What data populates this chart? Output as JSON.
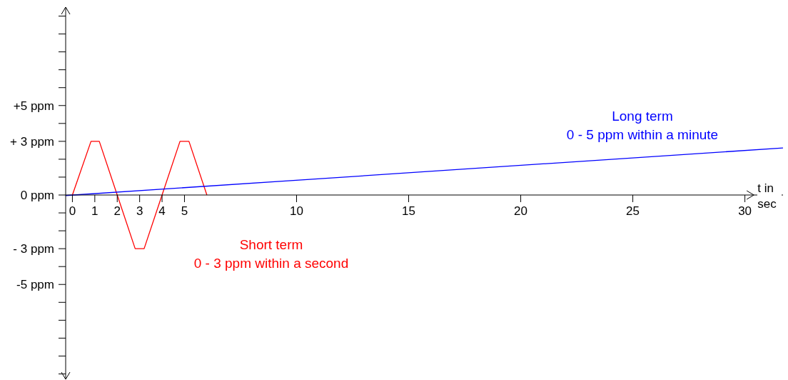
{
  "chart_data": {
    "type": "line",
    "xlabel": "t in sec",
    "series": [
      {
        "name": "Short term",
        "color": "#ff0000",
        "x": [
          0,
          0.83,
          1.2,
          2,
          2.8,
          3.2,
          4,
          4.8,
          5.2,
          6
        ],
        "values": [
          0,
          3,
          3,
          0,
          -3,
          -3,
          0,
          3,
          3,
          0
        ]
      },
      {
        "name": "Long term",
        "color": "#0000ff",
        "x": [
          -0.3,
          31.7
        ],
        "values": [
          -0.03,
          2.63
        ]
      }
    ],
    "annotations": [
      "0 - 3 ppm within a second",
      "0 - 5 ppm within a minute"
    ],
    "xlim": [
      -0.3,
      31.7
    ],
    "xticks": [
      0,
      1,
      2,
      3,
      4,
      5,
      10,
      15,
      20,
      25,
      30
    ],
    "ylim": [
      -10.3,
      10.5
    ],
    "yticks": [
      {
        "value": -10,
        "label": null
      },
      {
        "value": -9,
        "label": null
      },
      {
        "value": -8,
        "label": null
      },
      {
        "value": -7,
        "label": null
      },
      {
        "value": -6,
        "label": null
      },
      {
        "value": -5,
        "label": "-5 ppm"
      },
      {
        "value": -4,
        "label": null
      },
      {
        "value": -3,
        "label": "- 3 ppm"
      },
      {
        "value": -2,
        "label": null
      },
      {
        "value": -1,
        "label": null
      },
      {
        "value": 0,
        "label": "0 ppm"
      },
      {
        "value": 1,
        "label": null
      },
      {
        "value": 2,
        "label": null
      },
      {
        "value": 3,
        "label": "+ 3 ppm"
      },
      {
        "value": 4,
        "label": null
      },
      {
        "value": 5,
        "label": "+5 ppm"
      },
      {
        "value": 6,
        "label": null
      },
      {
        "value": 7,
        "label": null
      },
      {
        "value": 8,
        "label": null
      },
      {
        "value": 9,
        "label": null
      },
      {
        "value": 10,
        "label": null
      }
    ],
    "grid": false,
    "legend": false
  }
}
